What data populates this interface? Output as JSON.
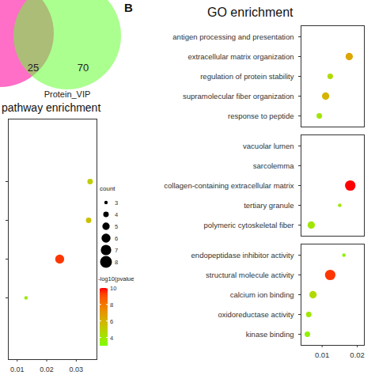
{
  "chart_data": [
    {
      "type": "venn",
      "sets": [
        {
          "name": null,
          "color": "#ff6ec7"
        },
        {
          "name": "Protein_VIP",
          "color": "#66ff33"
        }
      ],
      "intersection": 25,
      "only": [
        null,
        70
      ]
    },
    {
      "type": "scatter",
      "title": "pathway enrichment",
      "categories": [
        null,
        null,
        null,
        null
      ],
      "values": [
        0.0347,
        0.0342,
        0.0244,
        0.013
      ],
      "count": [
        4,
        4,
        6,
        3
      ],
      "neg_log10_pvalue": [
        5,
        5.5,
        9.5,
        3.8
      ],
      "xlim": [
        0.007,
        0.037
      ],
      "xticks": [
        0.01,
        0.02,
        0.03
      ],
      "size_legend": {
        "title": "count",
        "values": [
          3,
          4,
          5,
          6,
          7,
          8
        ]
      },
      "colorbar": {
        "title": "-log10(pvalue)",
        "range": [
          3,
          10
        ],
        "ticks": [
          4,
          6,
          8,
          10
        ]
      }
    },
    {
      "type": "scatter",
      "panel_label": "B",
      "title": "GO enrichment",
      "facets": [
        {
          "categories": [
            "antigen processing and presentation",
            "extracellular matrix organization",
            "regulation of protein stability",
            "supramolecular fiber organization",
            "response to peptide"
          ],
          "values": [
            null,
            0.0177,
            0.0123,
            0.011,
            0.0092
          ],
          "count": [
            null,
            5,
            4,
            5,
            4
          ],
          "neg_log10_pvalue": [
            null,
            6.5,
            4.5,
            6,
            4
          ]
        },
        {
          "categories": [
            "vacuolar lumen",
            "sarcolemma",
            "collagen-containing extracellular matrix",
            "tertiary granule",
            "polymeric cytoskeletal fiber"
          ],
          "values": [
            null,
            null,
            0.018,
            0.015,
            0.0069
          ],
          "count": [
            null,
            null,
            7,
            3,
            5
          ],
          "neg_log10_pvalue": [
            null,
            null,
            10,
            4,
            4
          ]
        },
        {
          "categories": [
            "endopeptidase inhibitor activity",
            "structural molecule activity",
            "calcium ion binding",
            "oxidoreductase activity",
            "kinase binding"
          ],
          "values": [
            0.0162,
            0.0123,
            0.0074,
            0.0062,
            0.0058
          ],
          "count": [
            3,
            7,
            5,
            4,
            4
          ],
          "neg_log10_pvalue": [
            3.5,
            9.5,
            4.5,
            4,
            3.5
          ]
        }
      ],
      "xlim": [
        0.004,
        0.022
      ],
      "xticks": [
        0.01,
        0.02
      ]
    }
  ]
}
